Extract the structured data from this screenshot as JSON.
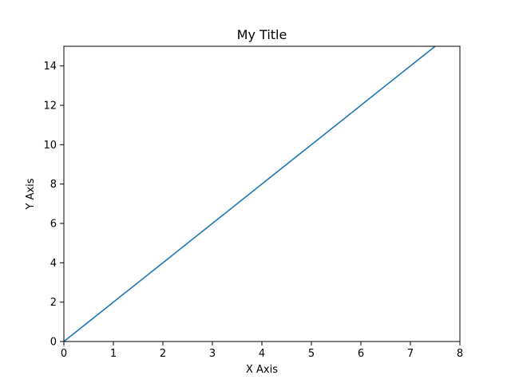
{
  "chart_data": {
    "type": "line",
    "title": "My Title",
    "xlabel": "X Axis",
    "ylabel": "Y Axis",
    "xlim": [
      0,
      8
    ],
    "ylim": [
      0,
      15
    ],
    "x_ticks": [
      0,
      1,
      2,
      3,
      4,
      5,
      6,
      7,
      8
    ],
    "y_ticks": [
      0,
      2,
      4,
      6,
      8,
      10,
      12,
      14
    ],
    "grid": false,
    "series": [
      {
        "color": "#1f77b4",
        "x": [
          0,
          1,
          2,
          3,
          4,
          5,
          6,
          7,
          7.5
        ],
        "y": [
          0,
          2,
          4,
          6,
          8,
          10,
          12,
          14,
          15
        ]
      }
    ]
  }
}
